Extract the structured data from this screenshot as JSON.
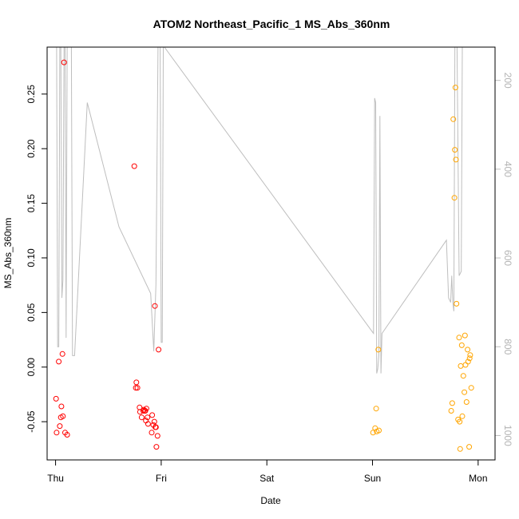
{
  "chart_data": {
    "type": "scatter",
    "title": "ATOM2 Northeast_Pacific_1 MS_Abs_360nm",
    "xlabel": "Date",
    "ylabel": "MS_Abs_360nm",
    "xlim": [
      -0.08,
      4.16
    ],
    "ylim": [
      -0.085,
      0.293
    ],
    "x_ticks": [
      {
        "value": 0,
        "label": "Thu"
      },
      {
        "value": 1,
        "label": "Fri"
      },
      {
        "value": 2,
        "label": "Sat"
      },
      {
        "value": 3,
        "label": "Sun"
      },
      {
        "value": 4,
        "label": "Mon"
      }
    ],
    "y_ticks": [
      -0.05,
      0.0,
      0.05,
      0.1,
      0.15,
      0.2,
      0.25
    ],
    "y_tick_labels": [
      "-0.05",
      "0.00",
      "0.05",
      "0.10",
      "0.15",
      "0.20",
      "0.25"
    ],
    "y2": {
      "ylim": [
        1055,
        125
      ],
      "ticks": [
        200,
        400,
        600,
        800,
        1000
      ],
      "tick_labels": [
        "200",
        "400",
        "600",
        "800",
        "1000"
      ],
      "color": "#bebebe"
    },
    "depth_trace": {
      "color": "#bebebe",
      "x": [
        0.01,
        0.02,
        0.03,
        0.04,
        0.05,
        0.06,
        0.07,
        0.08,
        0.09,
        0.1,
        0.11,
        0.12,
        0.13,
        0.14,
        0.15,
        0.16,
        0.18,
        0.3,
        0.6,
        0.9,
        0.93,
        0.95,
        0.97,
        0.99,
        1.0,
        1.01,
        1.02,
        1.03,
        3.01,
        3.02,
        3.03,
        3.04,
        3.05,
        3.06,
        3.07,
        3.08,
        3.09,
        3.7,
        3.72,
        3.74,
        3.75,
        3.76,
        3.77,
        3.78,
        3.8,
        3.82,
        3.84,
        3.85,
        3.86,
        3.88,
        3.9,
        3.92,
        3.94,
        3.96,
        3.98,
        4.0
      ],
      "y": [
        125,
        800,
        800,
        125,
        125,
        690,
        650,
        125,
        125,
        780,
        125,
        125,
        125,
        125,
        125,
        820,
        820,
        250,
        530,
        680,
        810,
        660,
        125,
        125,
        790,
        790,
        125,
        125,
        770,
        240,
        250,
        860,
        850,
        820,
        280,
        860,
        770,
        560,
        690,
        700,
        640,
        700,
        720,
        125,
        125,
        640,
        630,
        125,
        125,
        125,
        125,
        125,
        125,
        125,
        125,
        125
      ]
    },
    "series": [
      {
        "color": "#ff0000",
        "x": [
          0.01,
          0.02,
          0.04,
          0.05,
          0.06,
          0.08,
          0.1,
          0.11,
          0.03,
          0.07,
          0.09,
          0.75,
          0.76,
          0.77,
          0.78,
          0.79,
          0.8,
          0.81,
          0.82,
          0.83,
          0.84,
          0.85,
          0.86,
          0.87,
          0.88,
          0.89,
          0.9,
          0.91,
          0.92,
          0.93,
          0.94,
          0.95,
          0.96,
          0.97,
          0.98,
          0.99
        ],
        "y": [
          -0.029,
          -0.06,
          -0.054,
          -0.046,
          -0.036,
          -0.045,
          -0.06,
          -0.062,
          0.005,
          0.012,
          0.279,
          0.184,
          -0.019,
          -0.014,
          -0.019,
          -0.037,
          -0.041,
          -0.046,
          -0.04,
          -0.039,
          -0.04,
          -0.04,
          -0.038,
          -0.049,
          -0.046,
          -0.052,
          -0.06,
          -0.053,
          -0.055,
          -0.073,
          -0.063,
          0.056,
          0.016,
          -0.044,
          -0.05,
          -0.055
        ],
        "draw_x": [
          0.005,
          0.01,
          0.04,
          0.05,
          0.055,
          0.07,
          0.09,
          0.11,
          0.03,
          0.065,
          0.08,
          0.745,
          0.76,
          0.765,
          0.775,
          0.795,
          0.8,
          0.815,
          0.83,
          0.835,
          0.845,
          0.85,
          0.86,
          0.855,
          0.87,
          0.875,
          0.91,
          0.925,
          0.945,
          0.955,
          0.965,
          0.94,
          0.975,
          0.915,
          0.935,
          0.95
        ]
      },
      {
        "color": "#ffa500",
        "x": [
          2.99,
          3.01,
          3.03,
          3.04,
          3.05,
          3.06,
          3.75,
          3.76,
          3.77,
          3.78,
          3.79,
          3.8,
          3.81,
          3.82,
          3.83,
          3.84,
          3.85,
          3.86,
          3.87,
          3.88,
          3.89,
          3.9,
          3.91,
          3.92,
          3.93,
          3.94,
          3.95,
          3.96,
          3.97,
          3.98,
          3.99,
          4.0
        ],
        "y": [
          -0.06,
          -0.056,
          -0.038,
          0.016,
          -0.059,
          -0.058,
          -0.04,
          -0.033,
          0.227,
          0.155,
          0.199,
          0.256,
          0.19,
          0.058,
          -0.048,
          0.027,
          -0.05,
          -0.075,
          0.001,
          0.02,
          -0.045,
          -0.008,
          -0.023,
          0.029,
          0.002,
          -0.032,
          0.016,
          0.005,
          -0.073,
          0.011,
          -0.019,
          0.008
        ],
        "draw_x": [
          3.005,
          3.025,
          3.035,
          3.055,
          3.04,
          3.06,
          3.745,
          3.755,
          3.765,
          3.775,
          3.78,
          3.785,
          3.79,
          3.795,
          3.81,
          3.82,
          3.825,
          3.83,
          3.835,
          3.845,
          3.85,
          3.86,
          3.87,
          3.875,
          3.88,
          3.89,
          3.9,
          3.905,
          3.915,
          3.925,
          3.935,
          3.92
        ]
      }
    ]
  }
}
